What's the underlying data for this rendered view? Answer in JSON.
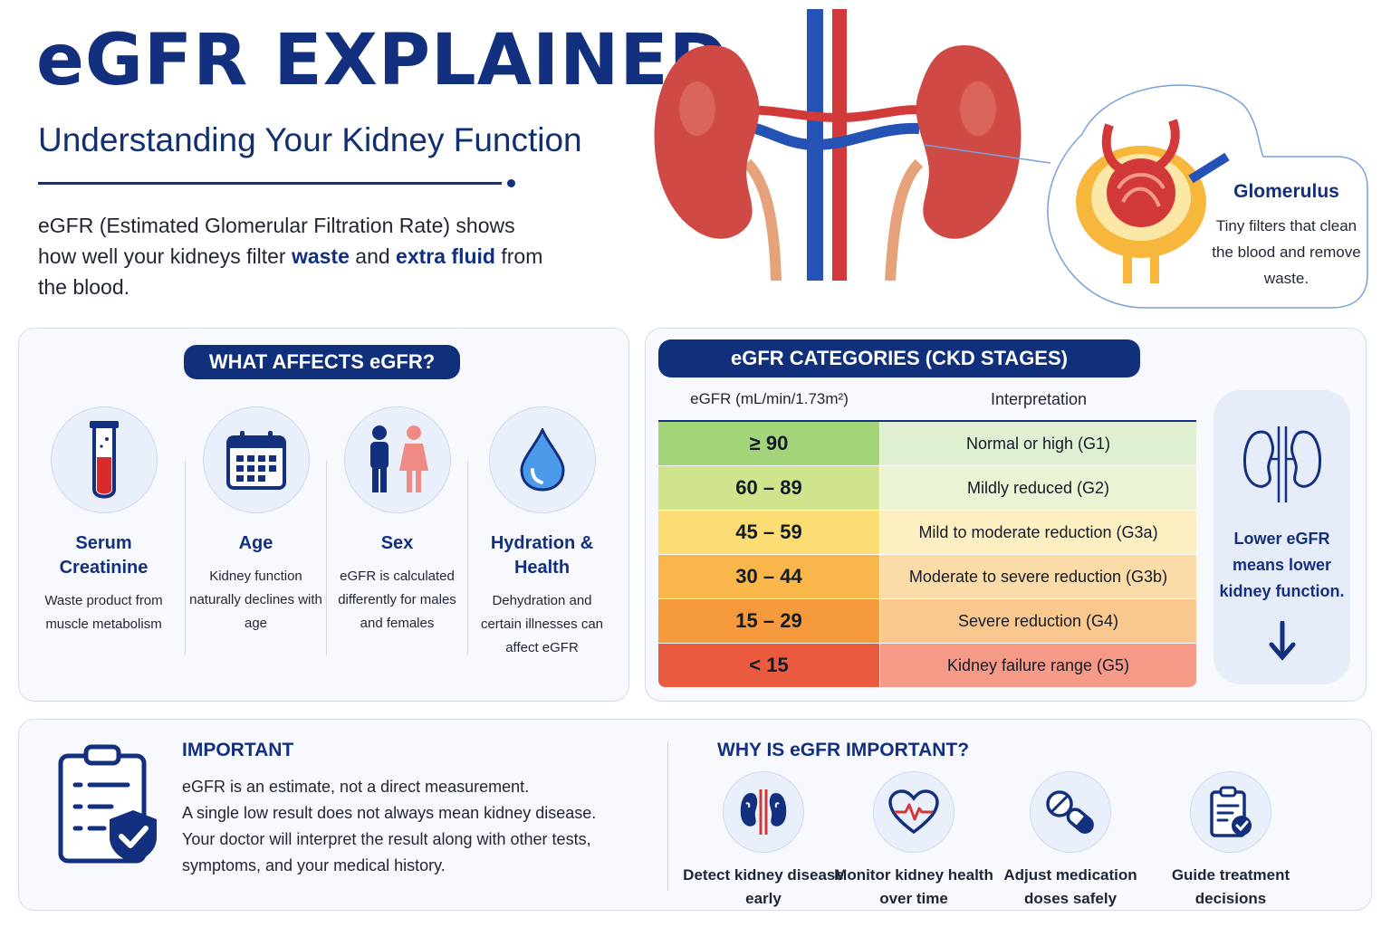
{
  "header": {
    "title": "eGFR EXPLAINED",
    "subtitle": "Understanding Your Kidney Function",
    "intro_part1": "eGFR (Estimated Glomerular Filtration Rate) shows how well your kidneys filter ",
    "intro_bold1": "waste",
    "intro_part2": " and ",
    "intro_bold2": "extra fluid",
    "intro_part3": " from the blood."
  },
  "glomerulus": {
    "title": "Glomerulus",
    "description": "Tiny filters that clean the blood and remove waste."
  },
  "affects": {
    "heading": "WHAT AFFECTS eGFR?",
    "factors": [
      {
        "name": "Serum Creatinine",
        "description": "Waste product from muscle metabolism",
        "icon": "test-tube-icon"
      },
      {
        "name": "Age",
        "description": "Kidney function naturally declines with age",
        "icon": "calendar-icon"
      },
      {
        "name": "Sex",
        "description": "eGFR is calculated differently for males and females",
        "icon": "male-female-icon"
      },
      {
        "name": "Hydration & Health",
        "description": "Dehydration and certain illnesses can affect eGFR",
        "icon": "water-drop-icon"
      }
    ]
  },
  "categories": {
    "heading": "eGFR CATEGORIES (CKD STAGES)",
    "col_range": "eGFR (mL/min/1.73m²)",
    "col_interp": "Interpretation",
    "rows": [
      {
        "range": "≥ 90",
        "interpretation": "Normal or high (G1)",
        "color_left": "#a3d47a",
        "color_right": "#dff0d2"
      },
      {
        "range": "60 – 89",
        "interpretation": "Mildly reduced (G2)",
        "color_left": "#cfe48c",
        "color_right": "#eaf3d4"
      },
      {
        "range": "45 – 59",
        "interpretation": "Mild to moderate reduction (G3a)",
        "color_left": "#fbdd74",
        "color_right": "#fcefc2"
      },
      {
        "range": "30 – 44",
        "interpretation": "Moderate to severe reduction (G3b)",
        "color_left": "#f9b64a",
        "color_right": "#fbdca8"
      },
      {
        "range": "15 – 29",
        "interpretation": "Severe reduction (G4)",
        "color_left": "#f49a3c",
        "color_right": "#f9c88f"
      },
      {
        "range": "< 15",
        "interpretation": "Kidney failure range (G5)",
        "color_left": "#ea5a3f",
        "color_right": "#f69a88"
      }
    ],
    "side_note": "Lower eGFR means lower kidney function."
  },
  "important": {
    "heading": "IMPORTANT",
    "lines": [
      "eGFR is an estimate, not a direct measurement.",
      "A single low result does not always mean kidney disease.",
      "Your doctor will interpret the result along with other tests,",
      "symptoms, and your medical history."
    ]
  },
  "why": {
    "heading": "WHY IS eGFR IMPORTANT?",
    "items": [
      {
        "label": "Detect kidney disease early",
        "icon": "kidneys-icon"
      },
      {
        "label": "Monitor kidney health over time",
        "icon": "heart-pulse-icon"
      },
      {
        "label": "Adjust medication doses safely",
        "icon": "pills-icon"
      },
      {
        "label": "Guide treatment decisions",
        "icon": "clipboard-check-icon"
      }
    ]
  },
  "colors": {
    "navy": "#13307f",
    "panel_bg": "#f7f9fe",
    "kidney_red": "#cf4a45",
    "vein_blue": "#2453b5"
  }
}
